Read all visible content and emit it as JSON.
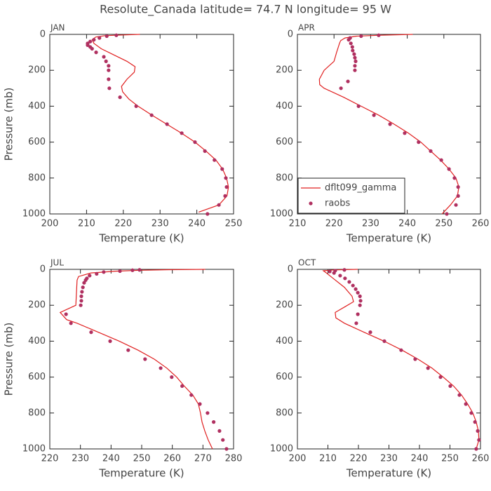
{
  "title": "Resolute_Canada  latitude= 74.7 N longitude= 95 W",
  "chart_data": [
    {
      "type": "line",
      "title": "JAN",
      "xlabel": "Temperature (K)",
      "ylabel": "Pressure (mb)",
      "xlim": [
        200,
        250
      ],
      "xticks": [
        200,
        210,
        220,
        230,
        240,
        250
      ],
      "ylim": [
        1000,
        0
      ],
      "yticks": [
        0,
        200,
        400,
        600,
        800,
        1000
      ],
      "series": [
        {
          "type": "line",
          "color": "#e02020",
          "x": [
            224.5,
            220,
            215,
            212.5,
            211.5,
            212,
            214,
            217,
            221,
            223.2,
            223,
            221,
            219.5,
            219.8,
            221.5,
            224,
            227.8,
            231.8,
            235.8,
            239.5,
            242.5,
            245.2,
            247,
            248.1,
            248.6,
            248.2,
            246,
            240.5
          ],
          "y": [
            0,
            3,
            7,
            15,
            30,
            50,
            80,
            110,
            150,
            180,
            210,
            250,
            290,
            320,
            360,
            400,
            450,
            500,
            550,
            600,
            650,
            700,
            750,
            800,
            850,
            900,
            950,
            990
          ]
        },
        {
          "type": "scatter",
          "color": "#b03060",
          "x": [
            218.1,
            215.5,
            213.5,
            212,
            211,
            210.3,
            210.3,
            211,
            211.5,
            212.6,
            214.7,
            215.3,
            216,
            216,
            216,
            216.2,
            219.1,
            223.5,
            227.7,
            231.9,
            235.9,
            239.5,
            242.2,
            244.8,
            246.9,
            247.9,
            248.1,
            247.7,
            246,
            242.9
          ],
          "y": [
            5,
            10,
            20,
            30,
            40,
            50,
            60,
            70,
            80,
            100,
            125,
            150,
            175,
            200,
            250,
            300,
            350,
            400,
            450,
            500,
            550,
            600,
            650,
            700,
            750,
            800,
            850,
            900,
            950,
            1000
          ]
        }
      ]
    },
    {
      "type": "line",
      "title": "APR",
      "xlabel": "Temperature (K)",
      "legend": "lower left",
      "xlim": [
        210,
        260
      ],
      "xticks": [
        210,
        220,
        230,
        240,
        250,
        260
      ],
      "ylim": [
        1000,
        0
      ],
      "yticks": [
        0,
        200,
        400,
        600,
        800,
        1000
      ],
      "series": [
        {
          "type": "line",
          "name": "dflt099_gamma",
          "color": "#e02020",
          "x": [
            241.5,
            232,
            226,
            223,
            221.8,
            221.5,
            220.7,
            220,
            217.3,
            216,
            216.1,
            217.3,
            222.6,
            227.4,
            232.2,
            236.4,
            240.3,
            243.7,
            246.4,
            249.1,
            251.4,
            253.3,
            254.1,
            253.7,
            251.8,
            249.5
          ],
          "y": [
            0,
            5,
            10,
            20,
            35,
            50,
            100,
            150,
            200,
            250,
            280,
            300,
            350,
            400,
            450,
            500,
            550,
            600,
            650,
            700,
            750,
            800,
            850,
            900,
            950,
            1000
          ]
        },
        {
          "type": "scatter",
          "name": "raobs",
          "color": "#b03060",
          "x": [
            232.2,
            227.4,
            224.4,
            224,
            224.6,
            225,
            225.1,
            225.5,
            225.7,
            225.9,
            225.7,
            225.7,
            223.8,
            221.9,
            226.7,
            230.9,
            235.3,
            239.3,
            243.1,
            246.4,
            249.3,
            251.4,
            252.9,
            253.9,
            253.9,
            253.3,
            250.8
          ],
          "y": [
            5,
            10,
            20,
            30,
            50,
            70,
            90,
            110,
            130,
            150,
            175,
            200,
            262,
            300,
            400,
            450,
            500,
            550,
            600,
            650,
            700,
            750,
            800,
            850,
            900,
            950,
            1000
          ]
        }
      ]
    },
    {
      "type": "line",
      "title": "JUL",
      "xlabel": "Temperature (K)",
      "ylabel": "Pressure (mb)",
      "xlim": [
        220,
        280
      ],
      "xticks": [
        220,
        230,
        240,
        250,
        260,
        270,
        280
      ],
      "ylim": [
        1000,
        0
      ],
      "yticks": [
        0,
        200,
        400,
        600,
        800,
        1000
      ],
      "series": [
        {
          "type": "line",
          "color": "#e02020",
          "x": [
            270.8,
            258.7,
            249.5,
            241.5,
            233.5,
            229.4,
            228.9,
            228.5,
            223.4,
            225.5,
            228.9,
            235.8,
            242.7,
            248.8,
            254.1,
            258.2,
            261.4,
            263.9,
            266.7,
            268.5,
            269.2,
            269.7,
            270.6,
            271.7,
            273.1
          ],
          "y": [
            0,
            2,
            5,
            10,
            20,
            40,
            60,
            200,
            240,
            280,
            300,
            350,
            400,
            450,
            500,
            550,
            600,
            650,
            700,
            750,
            800,
            850,
            900,
            950,
            1000
          ]
        },
        {
          "type": "scatter",
          "color": "#b03060",
          "x": [
            249.3,
            247,
            242.9,
            237.6,
            235.3,
            233,
            232.1,
            231.7,
            231.2,
            230.8,
            230.5,
            230.3,
            230.3,
            230.1,
            225.3,
            226.9,
            233.5,
            239.7,
            245.6,
            251.1,
            256.2,
            259.8,
            263.2,
            266.2,
            269,
            271.5,
            273.5,
            275.4,
            276.5,
            277.7
          ],
          "y": [
            3,
            5,
            10,
            15,
            25,
            35,
            50,
            60,
            75,
            100,
            125,
            150,
            175,
            200,
            250,
            300,
            350,
            400,
            450,
            500,
            550,
            600,
            650,
            700,
            750,
            800,
            850,
            900,
            950,
            1000
          ]
        }
      ]
    },
    {
      "type": "line",
      "title": "OCT",
      "xlabel": "Temperature (K)",
      "xlim": [
        200,
        260
      ],
      "xticks": [
        200,
        210,
        220,
        230,
        240,
        250,
        260
      ],
      "ylim": [
        1000,
        0
      ],
      "yticks": [
        0,
        200,
        400,
        600,
        800,
        1000
      ],
      "series": [
        {
          "type": "line",
          "color": "#e02020",
          "x": [
            219.8,
            212,
            208.5,
            209.5,
            211.7,
            215.4,
            217.9,
            218.4,
            215.4,
            212.4,
            212.6,
            215.4,
            221.8,
            228.4,
            234.3,
            239.5,
            244.1,
            247.8,
            251.2,
            253.8,
            255.8,
            257.5,
            258.6,
            259.3,
            259.5,
            258.6
          ],
          "y": [
            0,
            3,
            8,
            20,
            50,
            100,
            150,
            180,
            210,
            240,
            270,
            300,
            350,
            400,
            450,
            500,
            550,
            600,
            650,
            700,
            750,
            800,
            850,
            900,
            950,
            1000
          ]
        },
        {
          "type": "scatter",
          "color": "#b03060",
          "x": [
            215.4,
            212.4,
            210.6,
            212,
            214,
            215.6,
            217,
            218.2,
            219.1,
            219.8,
            220.5,
            220.7,
            220.5,
            219.8,
            219.3,
            223.9,
            228.5,
            234,
            238.6,
            242.8,
            246.9,
            250.1,
            253.1,
            255.2,
            257,
            258.2,
            259.1,
            259.5,
            258.6
          ],
          "y": [
            3,
            7,
            12,
            20,
            35,
            50,
            70,
            90,
            110,
            130,
            150,
            175,
            200,
            250,
            300,
            350,
            400,
            450,
            500,
            550,
            600,
            650,
            700,
            750,
            800,
            850,
            900,
            950,
            1000
          ]
        }
      ]
    }
  ]
}
